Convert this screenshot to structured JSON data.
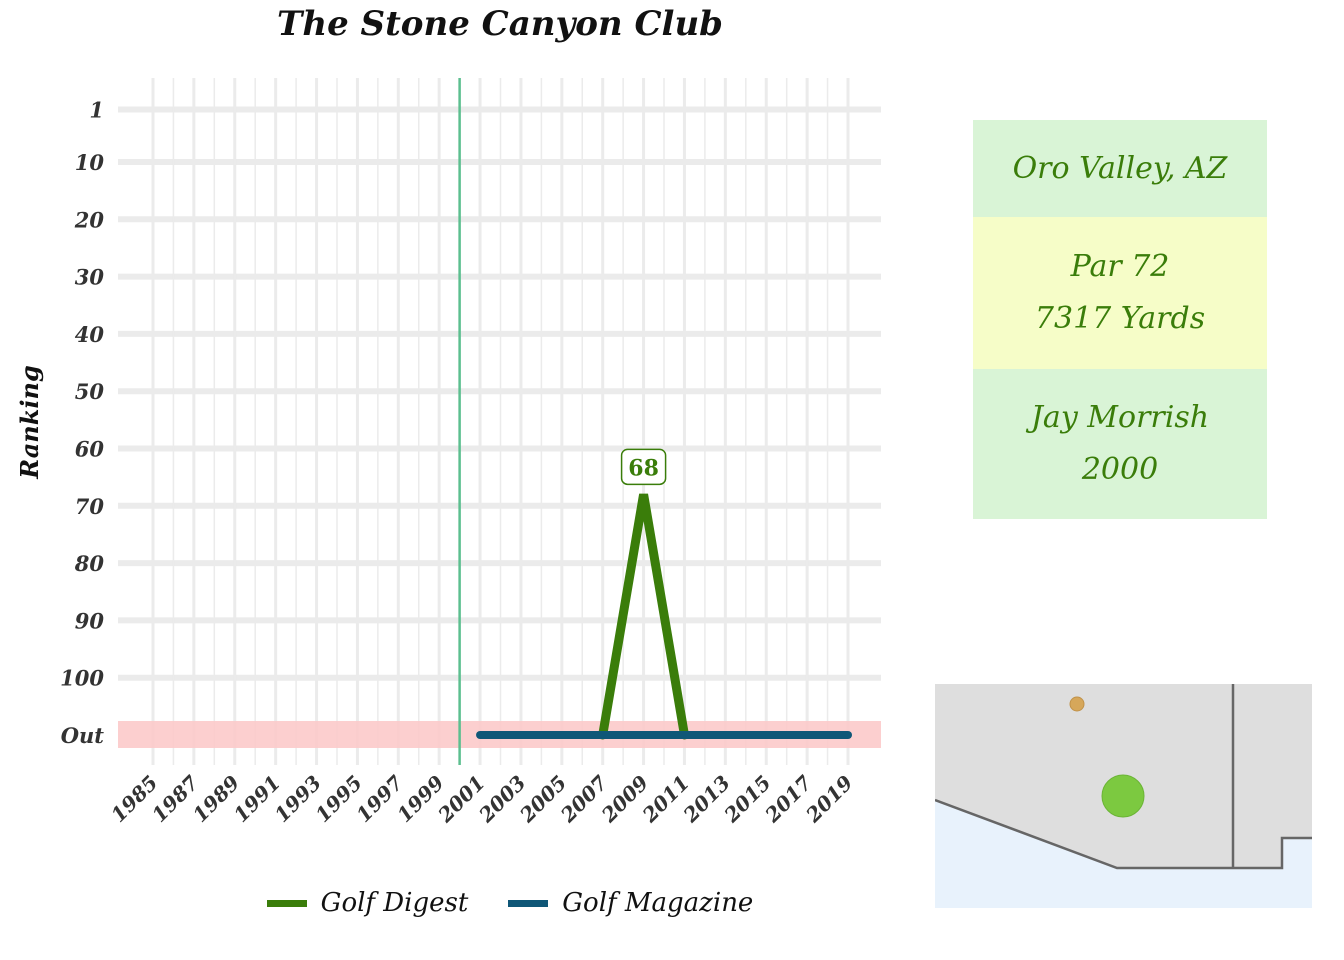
{
  "chart_data": {
    "type": "line",
    "title": "The Stone Canyon Club",
    "xlabel": "",
    "ylabel": "Ranking",
    "x_ticks": [
      "1985",
      "1987",
      "1989",
      "1991",
      "1993",
      "1995",
      "1997",
      "1999",
      "2001",
      "2003",
      "2005",
      "2007",
      "2009",
      "2011",
      "2013",
      "2015",
      "2017",
      "2019"
    ],
    "y_ticks": [
      "1",
      "10",
      "20",
      "30",
      "40",
      "50",
      "60",
      "70",
      "80",
      "90",
      "100",
      "Out"
    ],
    "y_reversed": true,
    "out_band_label": "Out",
    "vertical_reference_year": 2000,
    "grid": true,
    "legend_position": "bottom",
    "series": [
      {
        "name": "Golf Digest",
        "color": "#3a7d0a",
        "points": [
          [
            2007,
            "Out"
          ],
          [
            2009,
            68
          ],
          [
            2011,
            "Out"
          ]
        ]
      },
      {
        "name": "Golf Magazine",
        "color": "#0f5777",
        "points": [
          [
            2001,
            "Out"
          ],
          [
            2019,
            "Out"
          ]
        ]
      }
    ],
    "annotations": [
      {
        "x": 2009,
        "y": 68,
        "label": "68",
        "series": "Golf Digest"
      }
    ]
  },
  "info": {
    "location": "Oro Valley, AZ",
    "par": "Par 72",
    "yards": "7317 Yards",
    "architect": "Jay Morrish",
    "year": "2000"
  },
  "colors": {
    "info_green": "#d9f4d6",
    "info_yellow": "#f6fdc8",
    "info_text": "#3a7d0a",
    "out_band": "#fccaca",
    "ref_line": "#5cbf8f",
    "map_land": "#dedede",
    "map_water": "#e8f2fc",
    "map_marker_big": "#7cc940",
    "map_marker_small": "#d6a75a"
  }
}
